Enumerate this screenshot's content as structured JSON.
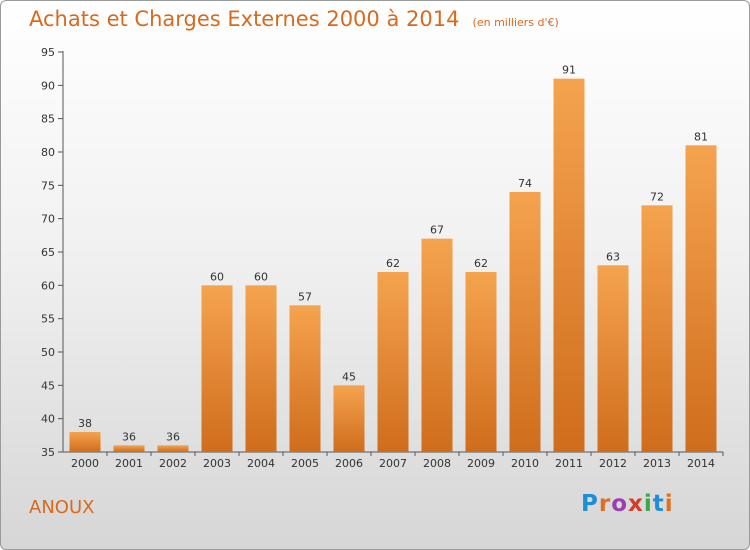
{
  "header": {
    "title": "Achats et Charges Externes 2000 à 2014",
    "unit": "(en milliers d'€)"
  },
  "footer": {
    "place": "ANOUX",
    "logo": [
      "P",
      "r",
      "o",
      "x",
      "i",
      "t",
      "i"
    ]
  },
  "colors": {
    "title": "#d86a1e",
    "bar_light": "#f5a34f",
    "bar_dark": "#cf6d1c",
    "logo": [
      "#1e8fd6",
      "#e0701e",
      "#9a3fb0",
      "#d43b2a",
      "#3aa84a",
      "#1e8fd6",
      "#e0701e"
    ]
  },
  "chart_data": {
    "type": "bar",
    "title": "Achats et Charges Externes 2000 à 2014",
    "subtitle": "(en milliers d'€)",
    "categories": [
      "2000",
      "2001",
      "2002",
      "2003",
      "2004",
      "2005",
      "2006",
      "2007",
      "2008",
      "2009",
      "2010",
      "2011",
      "2012",
      "2013",
      "2014"
    ],
    "values": [
      38,
      36,
      36,
      60,
      60,
      57,
      45,
      62,
      67,
      62,
      74,
      91,
      63,
      72,
      81
    ],
    "ylim": [
      35,
      95
    ],
    "yticks": [
      35,
      40,
      45,
      50,
      55,
      60,
      65,
      70,
      75,
      80,
      85,
      90,
      95
    ],
    "grid": false,
    "data_labels": true
  }
}
